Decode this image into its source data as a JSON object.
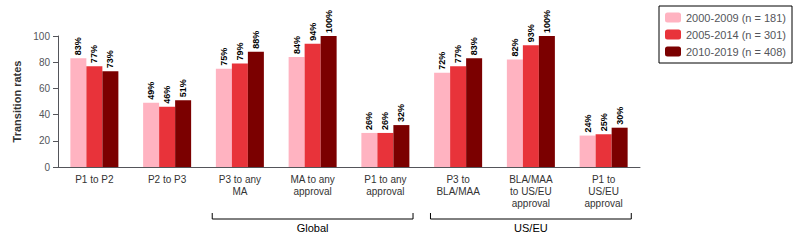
{
  "chart_data": {
    "type": "bar",
    "ylabel": "Transition rates",
    "categories": [
      "P1 to P2",
      "P2 to P3",
      "P3 to any\nMA",
      "MA to any\napproval",
      "P1 to any\napproval",
      "P3 to\nBLA/MAA",
      "BLA/MAA\nto US/EU\napproval",
      "P1 to\nUS/EU\napproval"
    ],
    "series": [
      {
        "name": "2000-2009 (n = 181)",
        "color": "#FFB3C1",
        "values": [
          83,
          49,
          75,
          84,
          26,
          72,
          82,
          24
        ],
        "value_labels": [
          "83%",
          "49%",
          "75%",
          "84%",
          "26%",
          "72%",
          "82%",
          "24%"
        ]
      },
      {
        "name": "2005-2014 (n = 301)",
        "color": "#E8333A",
        "values": [
          77,
          46,
          79,
          94,
          26,
          77,
          93,
          25
        ],
        "value_labels": [
          "77%",
          "46%",
          "79%",
          "94%",
          "26%",
          "77%",
          "93%",
          "25%"
        ]
      },
      {
        "name": "2010-2019 (n = 408)",
        "color": "#7B0000",
        "values": [
          73,
          51,
          88,
          100,
          32,
          83,
          100,
          30
        ],
        "value_labels": [
          "73%",
          "51%",
          "88%",
          "100%",
          "32%",
          "83%",
          "100%",
          "30%"
        ]
      }
    ],
    "ylim": [
      0,
      100
    ],
    "yticks": [
      0,
      20,
      40,
      60,
      80,
      100
    ],
    "grid": false,
    "legend": "upper right",
    "data_labels": true,
    "annotations": [
      {
        "text": "Global",
        "from": "P3 to any\nMA",
        "to": "P1 to any\napproval"
      },
      {
        "text": "US/EU",
        "from": "P3 to\nBLA/MAA",
        "to": "P1 to\nUS/EU\napproval"
      }
    ]
  }
}
